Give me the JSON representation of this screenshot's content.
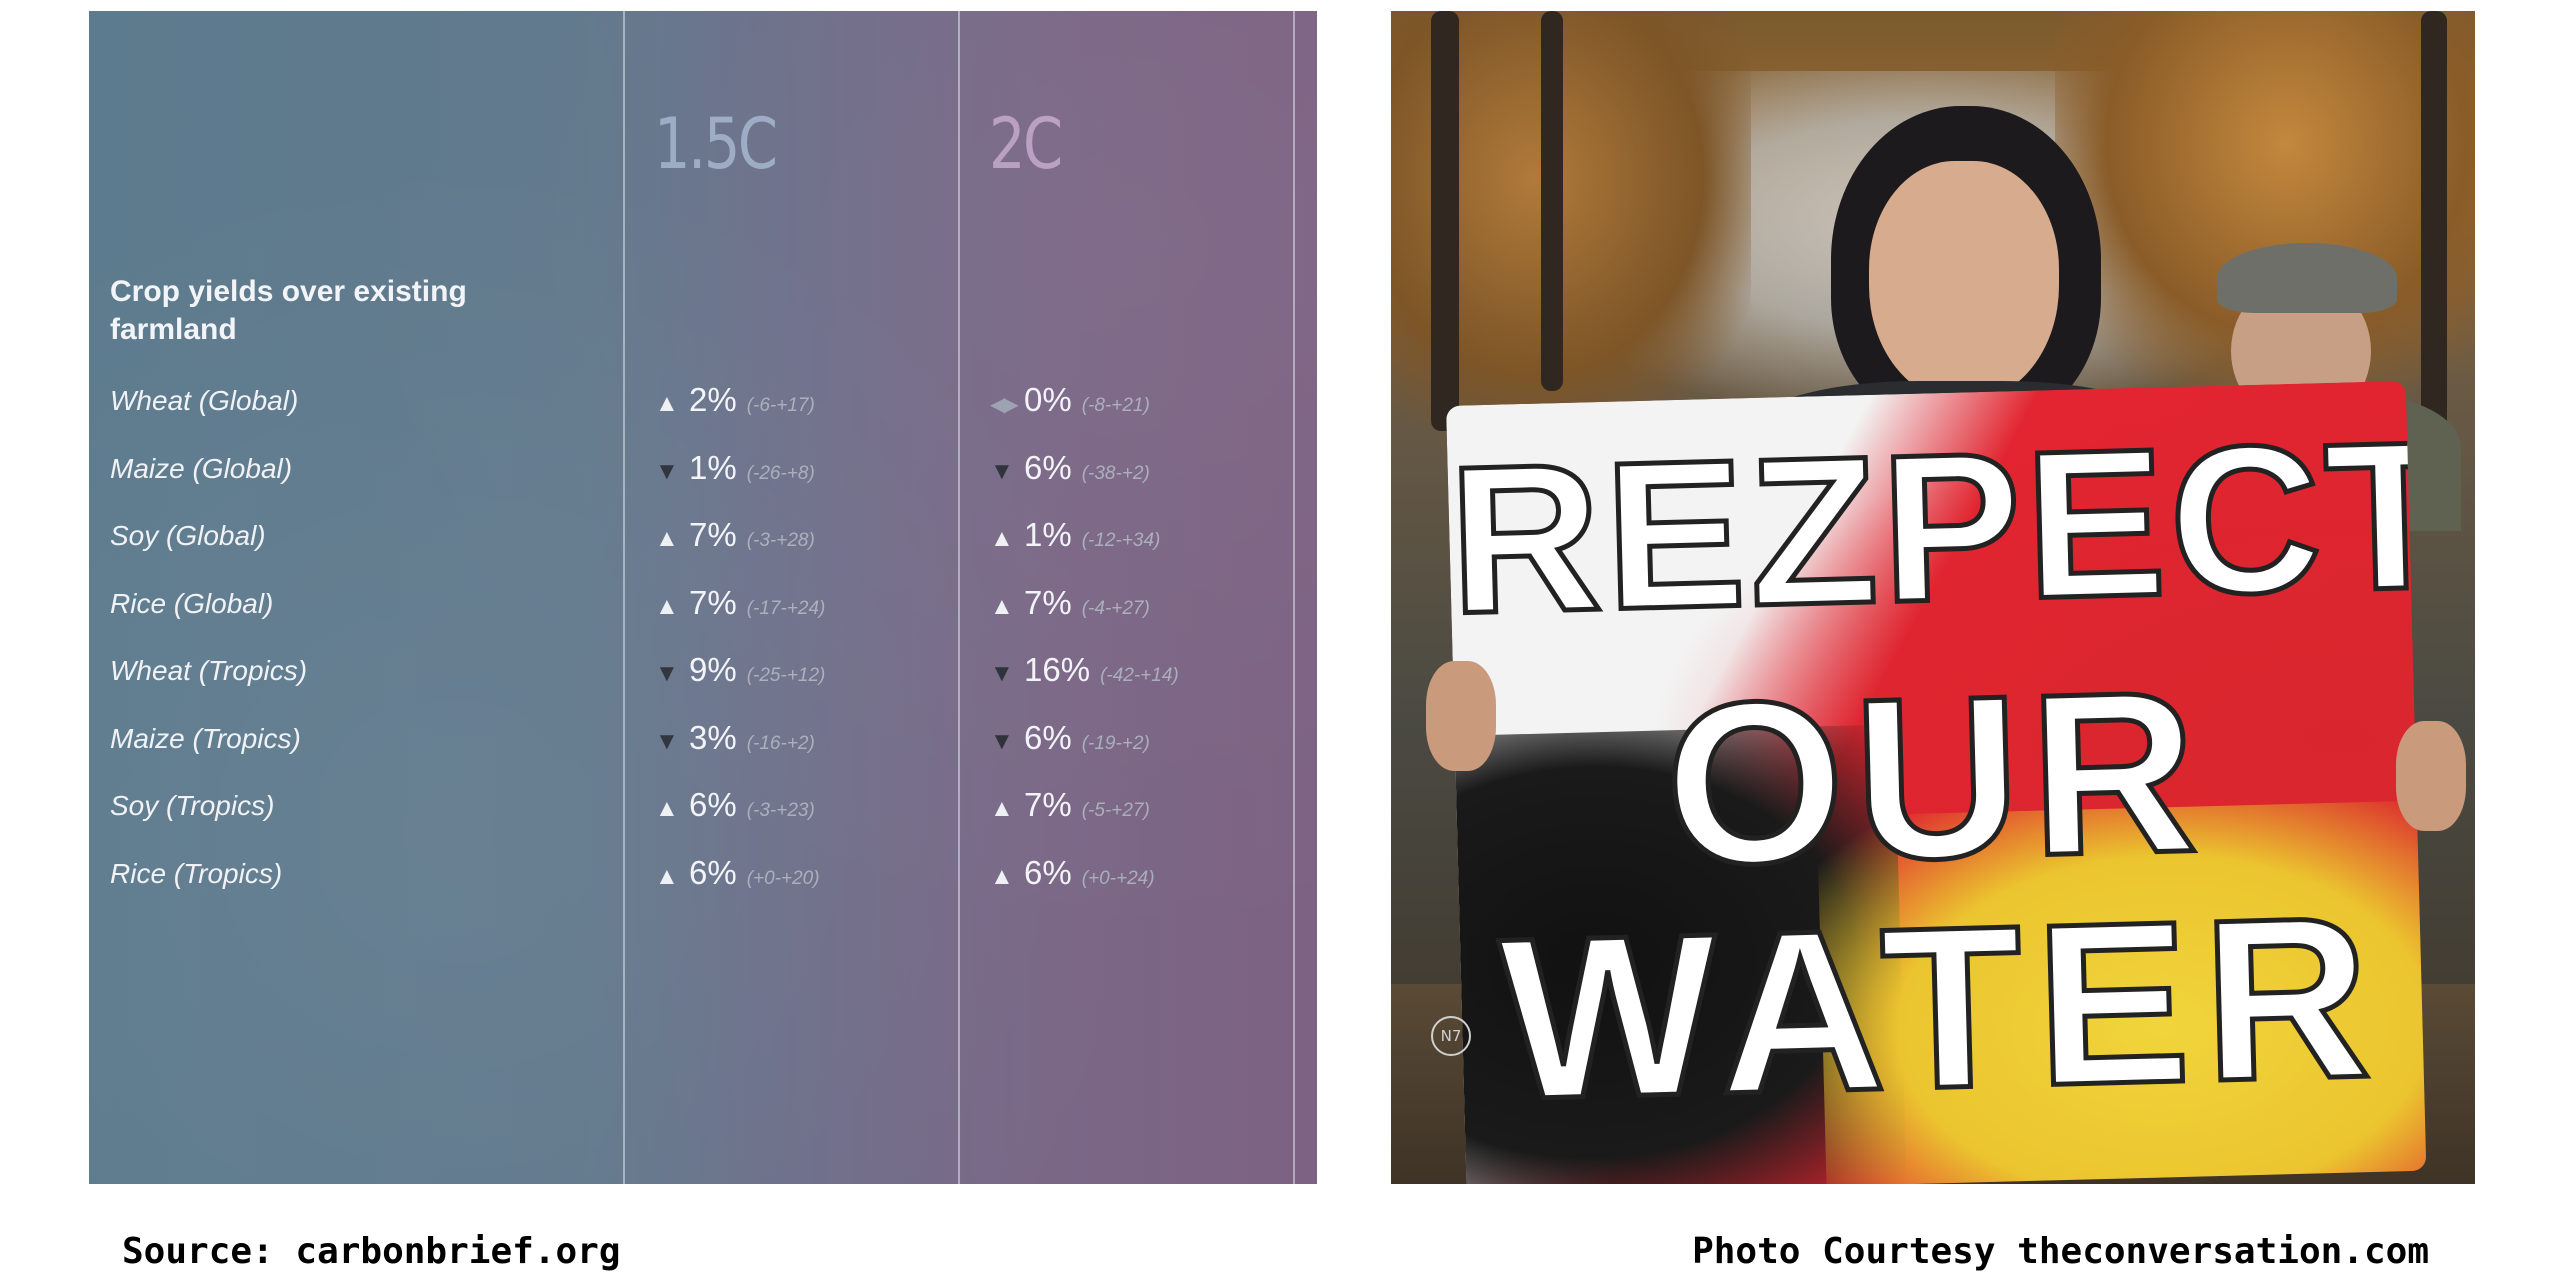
{
  "table": {
    "scenarios": [
      "1.5C",
      "2C"
    ],
    "section_title": "Crop yields over existing farmland",
    "rows": [
      {
        "crop": "Wheat (Global)",
        "s15": {
          "dir": "up",
          "value": "2%",
          "range": "(-6-+17)"
        },
        "s2": {
          "dir": "flat",
          "value": "0%",
          "range": "(-8-+21)"
        }
      },
      {
        "crop": "Maize (Global)",
        "s15": {
          "dir": "down",
          "value": "1%",
          "range": "(-26-+8)"
        },
        "s2": {
          "dir": "down",
          "value": "6%",
          "range": "(-38-+2)"
        }
      },
      {
        "crop": "Soy (Global)",
        "s15": {
          "dir": "up",
          "value": "7%",
          "range": "(-3-+28)"
        },
        "s2": {
          "dir": "up",
          "value": "1%",
          "range": "(-12-+34)"
        }
      },
      {
        "crop": "Rice (Global)",
        "s15": {
          "dir": "up",
          "value": "7%",
          "range": "(-17-+24)"
        },
        "s2": {
          "dir": "up",
          "value": "7%",
          "range": "(-4-+27)"
        }
      },
      {
        "crop": "Wheat (Tropics)",
        "s15": {
          "dir": "down",
          "value": "9%",
          "range": "(-25-+12)"
        },
        "s2": {
          "dir": "down",
          "value": "16%",
          "range": "(-42-+14)"
        }
      },
      {
        "crop": "Maize (Tropics)",
        "s15": {
          "dir": "down",
          "value": "3%",
          "range": "(-16-+2)"
        },
        "s2": {
          "dir": "down",
          "value": "6%",
          "range": "(-19-+2)"
        }
      },
      {
        "crop": "Soy (Tropics)",
        "s15": {
          "dir": "up",
          "value": "6%",
          "range": "(-3-+23)"
        },
        "s2": {
          "dir": "up",
          "value": "7%",
          "range": "(-5-+27)"
        }
      },
      {
        "crop": "Rice (Tropics)",
        "s15": {
          "dir": "up",
          "value": "6%",
          "range": "(+0-+20)"
        },
        "s2": {
          "dir": "up",
          "value": "6%",
          "range": "(+0-+24)"
        }
      }
    ]
  },
  "photo": {
    "sign_lines": [
      "REZPECT",
      "OUR",
      "WATER"
    ],
    "logo_text": "N7"
  },
  "captions": {
    "left": "Source: carbonbrief.org",
    "right": "Photo Courtesy theconversation.com"
  },
  "colors": {
    "panel_teal": "#5d7b8e",
    "panel_purple": "#7d6283",
    "sign_red": "#df2430",
    "sign_yellow": "#ebc52f"
  }
}
